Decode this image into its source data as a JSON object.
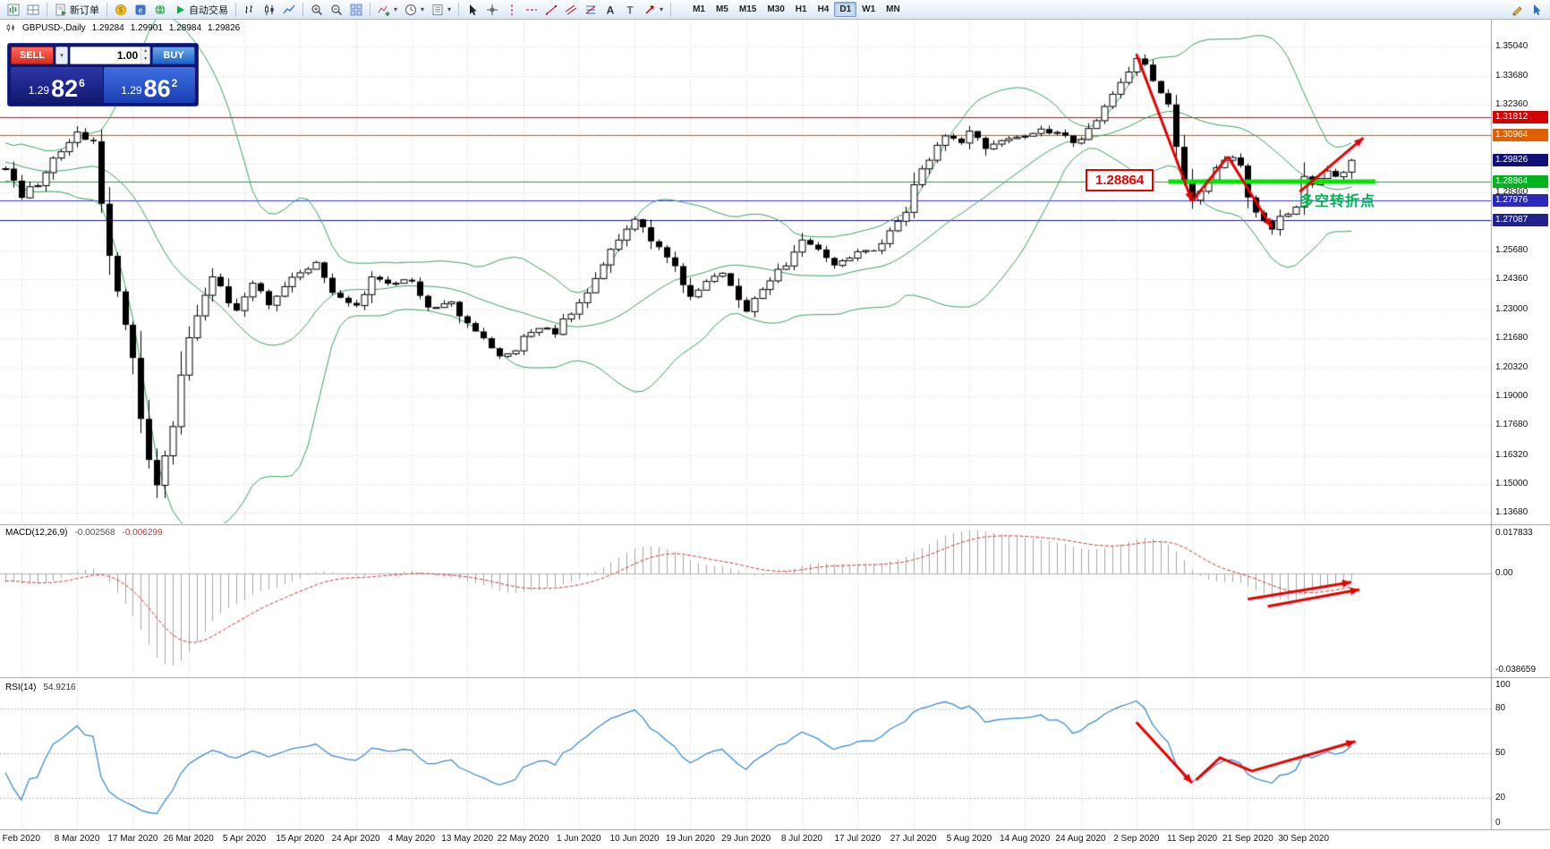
{
  "toolbar": {
    "groups": [
      {
        "items": [
          {
            "name": "new-chart",
            "icon": "chart-new"
          },
          {
            "name": "profiles",
            "icon": "layout"
          }
        ]
      },
      {
        "items": [
          {
            "name": "new-order",
            "icon": "new-order",
            "label": "新订单"
          }
        ]
      },
      {
        "items": [
          {
            "name": "market-watch",
            "icon": "coin"
          },
          {
            "name": "metaeditor",
            "icon": "editor"
          },
          {
            "name": "terminal",
            "icon": "globe"
          },
          {
            "name": "autotrading",
            "icon": "play",
            "label": "自动交易"
          }
        ]
      },
      {
        "items": [
          {
            "name": "bar-chart-mode",
            "icon": "bars"
          },
          {
            "name": "candlestick-mode",
            "icon": "candles"
          },
          {
            "name": "line-chart-mode",
            "icon": "line"
          }
        ]
      },
      {
        "items": [
          {
            "name": "zoom-in",
            "icon": "zoom-in"
          },
          {
            "name": "zoom-out",
            "icon": "zoom-out"
          },
          {
            "name": "tile-windows",
            "icon": "tile"
          }
        ]
      },
      {
        "items": [
          {
            "name": "indicators",
            "icon": "indicator",
            "dropdown": true
          },
          {
            "name": "periods",
            "icon": "clock",
            "dropdown": true
          },
          {
            "name": "templates",
            "icon": "template",
            "dropdown": true
          }
        ]
      },
      {
        "items": [
          {
            "name": "cursor-tool",
            "icon": "cursor"
          },
          {
            "name": "crosshair-tool",
            "icon": "crosshair"
          },
          {
            "name": "vertical-line-tool",
            "icon": "vline"
          },
          {
            "name": "horizontal-line-tool",
            "icon": "hline"
          },
          {
            "name": "trendline-tool",
            "icon": "trend"
          },
          {
            "name": "channel-tool",
            "icon": "channel"
          },
          {
            "name": "fibonacci-tool",
            "icon": "fibo"
          },
          {
            "name": "text-tool",
            "icon": "text-a"
          },
          {
            "name": "text-label-tool",
            "icon": "label-t"
          },
          {
            "name": "arrows-tool",
            "icon": "arrow-obj",
            "dropdown": true
          }
        ]
      }
    ],
    "timeframes": [
      "M1",
      "M5",
      "M15",
      "M30",
      "H1",
      "H4",
      "D1",
      "W1",
      "MN"
    ],
    "active_timeframe": "D1",
    "right_icons": [
      {
        "name": "pen",
        "icon": "pen"
      },
      {
        "name": "pointer",
        "icon": "pointer"
      }
    ]
  },
  "trade_panel": {
    "sell_label": "SELL",
    "buy_label": "BUY",
    "volume": "1.00",
    "sell_price": {
      "prefix": "1.29",
      "big": "82",
      "sup": "6"
    },
    "buy_price": {
      "prefix": "1.29",
      "big": "86",
      "sup": "2"
    }
  },
  "chart": {
    "symbol_title": "GBPUSD-,Daily",
    "ohlc": {
      "open": "1.29284",
      "high": "1.29901",
      "low": "1.28984",
      "close": "1.29826"
    },
    "bollinger_color": "#3aa45e",
    "price_ticks": [
      "1.35040",
      "1.33680",
      "1.32360",
      "1.31040",
      "1.29680",
      "1.28360",
      "1.27040",
      "1.25680",
      "1.24360",
      "1.23000",
      "1.21680",
      "1.20320",
      "1.19000",
      "1.17680",
      "1.16320",
      "1.15000",
      "1.13680"
    ],
    "price_tags": [
      {
        "value": "1.31812",
        "bg": "#d40000",
        "fg": "#ffffff",
        "price": 1.31812
      },
      {
        "value": "1.30964",
        "bg": "#e06000",
        "fg": "#ffffff",
        "price": 1.30964
      },
      {
        "value": "1.29826",
        "bg": "#101078",
        "fg": "#ffffff",
        "price": 1.29826
      },
      {
        "value": "1.28864",
        "bg": "#00b41e",
        "fg": "#ffffff",
        "price": 1.28864
      },
      {
        "value": "1.27976",
        "bg": "#2a2ab8",
        "fg": "#ffffff",
        "price": 1.27976
      },
      {
        "value": "1.27087",
        "bg": "#222288",
        "fg": "#ffffff",
        "price": 1.27087
      }
    ],
    "levels": [
      {
        "price": 1.31812,
        "color": "#d40000",
        "width": 1
      },
      {
        "price": 1.30964,
        "color": "#e06000",
        "width": 1
      },
      {
        "price": 1.28864,
        "color": "#00b41e",
        "width": 1
      },
      {
        "price": 1.27976,
        "color": "#3c3cd8",
        "width": 1
      },
      {
        "price": 1.27087,
        "color": "#222288",
        "width": 1
      }
    ],
    "support_segment": {
      "price": 1.28864,
      "from_index": 146,
      "to_index": 172,
      "color": "#00e400",
      "width": 5
    },
    "dates": [
      "Feb 2020",
      "8 Mar 2020",
      "17 Mar 2020",
      "26 Mar 2020",
      "5 Apr 2020",
      "15 Apr 2020",
      "24 Apr 2020",
      "4 May 2020",
      "13 May 2020",
      "22 May 2020",
      "1 Jun 2020",
      "10 Jun 2020",
      "19 Jun 2020",
      "29 Jun 2020",
      "8 Jul 2020",
      "17 Jul 2020",
      "27 Jul 2020",
      "5 Aug 2020",
      "14 Aug 2020",
      "24 Aug 2020",
      "2 Sep 2020",
      "11 Sep 2020",
      "21 Sep 2020",
      "30 Sep 2020"
    ]
  },
  "macd": {
    "label": "MACD(12,26,9)",
    "value_main": "-0.002568",
    "value_signal": "-0.006299",
    "axis_max": "0.017833",
    "axis_zero": "0.00",
    "axis_min": "-0.038659"
  },
  "rsi": {
    "label": "RSI(14)",
    "value": "54.9216",
    "axis_ticks": [
      "100",
      "80",
      "50",
      "20",
      "0"
    ],
    "levels": [
      80,
      50,
      20
    ]
  },
  "annotations": {
    "level_box_label": "1.28864",
    "turning_point_label": "多空转折点",
    "arrow_color": "#e60000",
    "main_arrows": [
      {
        "pts": [
          [
            142,
            1.347
          ],
          [
            149,
            1.2795
          ]
        ],
        "head": true
      },
      {
        "pts": [
          [
            149,
            1.2795
          ],
          [
            153.5,
            1.3
          ]
        ],
        "head": false
      },
      {
        "pts": [
          [
            153.5,
            1.3
          ],
          [
            159,
            1.2675
          ]
        ],
        "head": true
      },
      {
        "pts": [
          [
            162.5,
            1.2838
          ],
          [
            170.5,
            1.3085
          ]
        ],
        "head": true
      }
    ],
    "macd_arrows": [
      {
        "pts": [
          [
            156,
            -0.0098
          ],
          [
            169,
            -0.0034
          ]
        ],
        "head": true
      },
      {
        "pts": [
          [
            158.5,
            -0.0125
          ],
          [
            170,
            -0.0062
          ]
        ],
        "head": true
      }
    ],
    "rsi_arrows": [
      {
        "pts": [
          [
            142,
            71
          ],
          [
            149,
            30
          ]
        ],
        "head": true
      },
      {
        "pts": [
          [
            149.5,
            32
          ],
          [
            152.5,
            47
          ],
          [
            156.5,
            38
          ]
        ],
        "head": false
      },
      {
        "pts": [
          [
            156.5,
            38
          ],
          [
            169.5,
            58
          ]
        ],
        "head": true
      }
    ]
  },
  "chart_data": {
    "type": "candlestick",
    "symbol": "GBPUSD",
    "timeframe": "Daily",
    "visible_candles": 170,
    "last_ohlc": {
      "open": 1.29284,
      "high": 1.29901,
      "low": 1.28984,
      "close": 1.29826
    },
    "key_levels": [
      1.31812,
      1.30964,
      1.28864,
      1.27976,
      1.27087
    ],
    "indicators": [
      {
        "name": "Bollinger Bands",
        "period": 20,
        "deviation": 2
      },
      {
        "name": "MACD",
        "fast": 12,
        "slow": 26,
        "signal": 9,
        "current": [
          -0.002568,
          -0.006299
        ]
      },
      {
        "name": "RSI",
        "period": 14,
        "current": 54.9216
      }
    ],
    "anchors": [
      [
        -60,
        1.306
      ],
      [
        -52,
        1.3
      ],
      [
        -45,
        1.312
      ],
      [
        -38,
        1.308
      ],
      [
        -30,
        1.302
      ],
      [
        -22,
        1.309
      ],
      [
        -14,
        1.3
      ],
      [
        -7,
        1.295
      ],
      [
        -2,
        1.291
      ],
      [
        0,
        1.2955
      ],
      [
        2,
        1.282
      ],
      [
        4,
        1.288
      ],
      [
        6,
        1.298
      ],
      [
        9,
        1.3105
      ],
      [
        11,
        1.305
      ],
      [
        13,
        1.251
      ],
      [
        15,
        1.227
      ],
      [
        16,
        1.205
      ],
      [
        18,
        1.162
      ],
      [
        19,
        1.149
      ],
      [
        20,
        1.163
      ],
      [
        21,
        1.18
      ],
      [
        23,
        1.219
      ],
      [
        26,
        1.2455
      ],
      [
        29,
        1.229
      ],
      [
        31,
        1.2415
      ],
      [
        33,
        1.232
      ],
      [
        35,
        1.239
      ],
      [
        37,
        1.2475
      ],
      [
        39,
        1.2505
      ],
      [
        41,
        1.236
      ],
      [
        44,
        1.2325
      ],
      [
        46,
        1.2445
      ],
      [
        48,
        1.242
      ],
      [
        51,
        1.2435
      ],
      [
        53,
        1.2305
      ],
      [
        56,
        1.2335
      ],
      [
        58,
        1.2225
      ],
      [
        60,
        1.217
      ],
      [
        62,
        1.2085
      ],
      [
        64,
        1.212
      ],
      [
        65,
        1.2175
      ],
      [
        67,
        1.2215
      ],
      [
        69,
        1.2195
      ],
      [
        72,
        1.2335
      ],
      [
        74,
        1.2435
      ],
      [
        76,
        1.2575
      ],
      [
        79,
        1.2715
      ],
      [
        81,
        1.2605
      ],
      [
        83,
        1.254
      ],
      [
        85,
        1.2425
      ],
      [
        86,
        1.2355
      ],
      [
        88,
        1.2425
      ],
      [
        90,
        1.2475
      ],
      [
        92,
        1.234
      ],
      [
        93,
        1.2295
      ],
      [
        95,
        1.2405
      ],
      [
        97,
        1.247
      ],
      [
        99,
        1.2555
      ],
      [
        100,
        1.2615
      ],
      [
        102,
        1.2565
      ],
      [
        104,
        1.2505
      ],
      [
        107,
        1.2555
      ],
      [
        109,
        1.257
      ],
      [
        111,
        1.2665
      ],
      [
        113,
        1.2765
      ],
      [
        114,
        1.2885
      ],
      [
        116,
        1.2985
      ],
      [
        118,
        1.3085
      ],
      [
        120,
        1.307
      ],
      [
        121,
        1.3115
      ],
      [
        123,
        1.3035
      ],
      [
        125,
        1.3065
      ],
      [
        127,
        1.3095
      ],
      [
        128,
        1.3085
      ],
      [
        130,
        1.3125
      ],
      [
        132,
        1.3105
      ],
      [
        134,
        1.3065
      ],
      [
        135,
        1.3075
      ],
      [
        137,
        1.3155
      ],
      [
        139,
        1.3285
      ],
      [
        141,
        1.3395
      ],
      [
        142,
        1.3455
      ],
      [
        143,
        1.3415
      ],
      [
        144,
        1.3345
      ],
      [
        145,
        1.3295
      ],
      [
        146,
        1.3235
      ],
      [
        147,
        1.3065
      ],
      [
        148,
        1.2925
      ],
      [
        149,
        1.279
      ],
      [
        150,
        1.2845
      ],
      [
        151,
        1.2885
      ],
      [
        152,
        1.2935
      ],
      [
        153,
        1.2985
      ],
      [
        154,
        1.2995
      ],
      [
        155,
        1.2955
      ],
      [
        156,
        1.282
      ],
      [
        157,
        1.2755
      ],
      [
        158,
        1.269
      ],
      [
        159,
        1.2675
      ],
      [
        160,
        1.2735
      ],
      [
        161,
        1.2745
      ],
      [
        162,
        1.2765
      ],
      [
        163,
        1.2915
      ],
      [
        164,
        1.2865
      ],
      [
        165,
        1.2895
      ],
      [
        166,
        1.2935
      ],
      [
        167,
        1.2915
      ],
      [
        168,
        1.2925
      ],
      [
        169,
        1.29826
      ]
    ]
  }
}
